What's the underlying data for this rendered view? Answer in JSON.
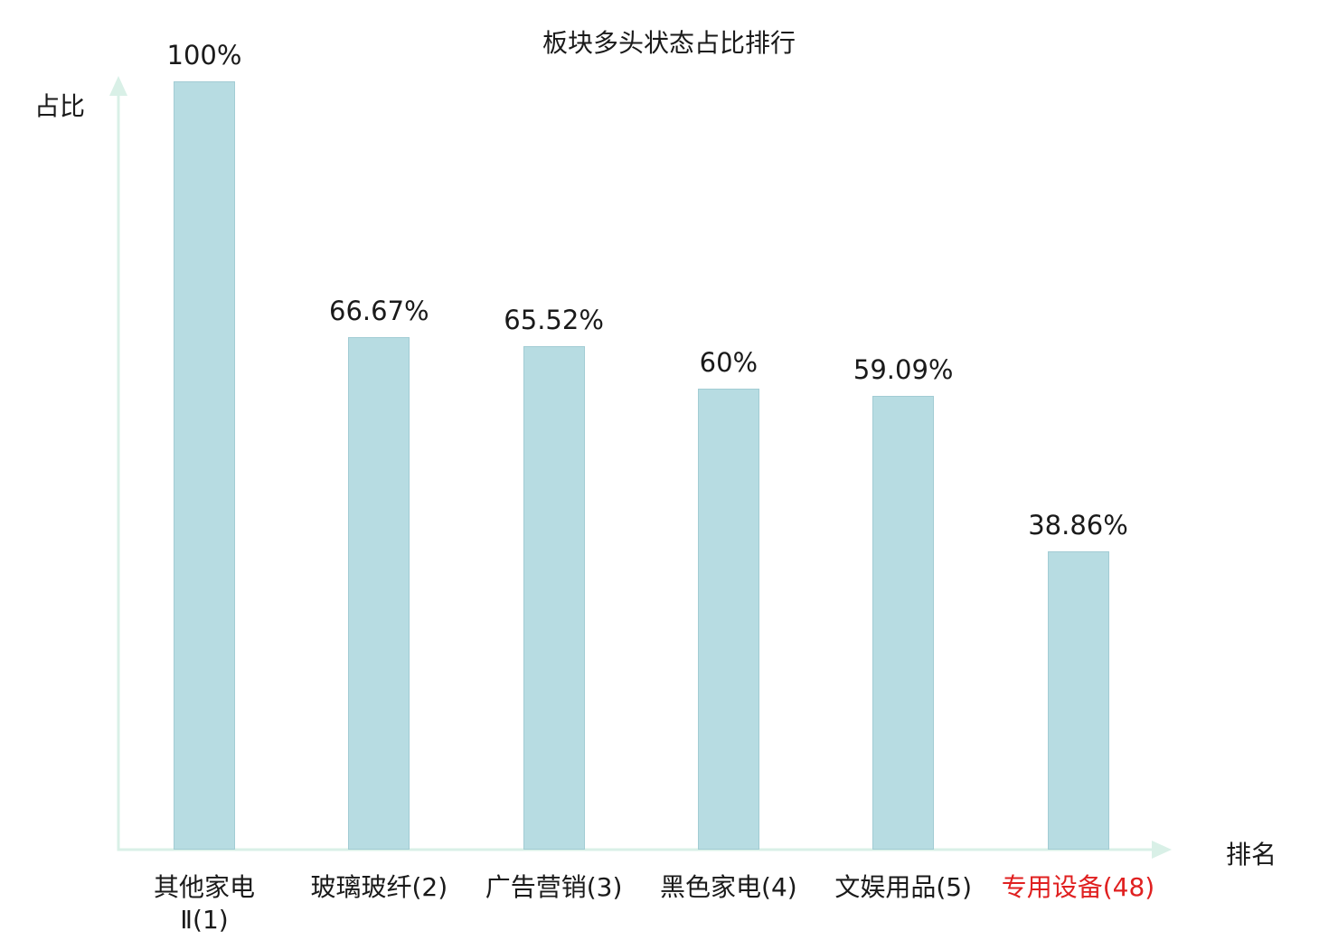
{
  "chart_data": {
    "type": "bar",
    "title": "板块多头状态占比排行",
    "xlabel": "排名",
    "ylabel": "占比",
    "ylim": [
      0,
      100
    ],
    "grid": false,
    "legend": "none",
    "categories": [
      "其他家电Ⅱ(1)",
      "玻璃玻纤(2)",
      "广告营销(3)",
      "黑色家电(4)",
      "文娱用品(5)",
      "专用设备(48)"
    ],
    "category_lines": [
      [
        "其他家电",
        "Ⅱ(1)"
      ],
      [
        "玻璃玻纤(2)"
      ],
      [
        "广告营销(3)"
      ],
      [
        "黑色家电(4)"
      ],
      [
        "文娱用品(5)"
      ],
      [
        "专用设备(48)"
      ]
    ],
    "values": [
      100,
      66.67,
      65.52,
      60,
      59.09,
      38.86
    ],
    "value_labels": [
      "100%",
      "66.67%",
      "65.52%",
      "60%",
      "59.09%",
      "38.86%"
    ],
    "highlight_index": 5,
    "colors": {
      "bar_fill": "#b7dce2",
      "bar_border": "#a2ccd4",
      "axis": "#d9f0e7",
      "text": "#1a1a1a",
      "highlight_text": "#e02020"
    }
  }
}
